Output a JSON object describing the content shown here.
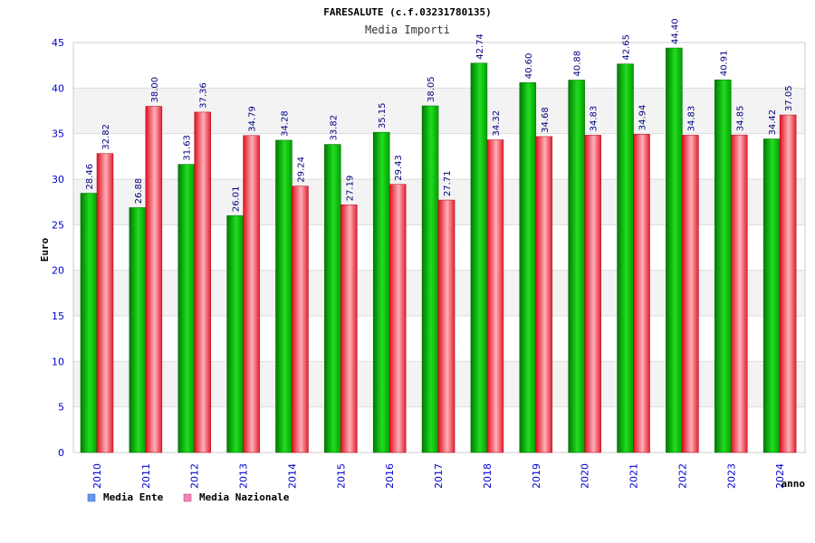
{
  "chart_data": {
    "type": "bar",
    "title": "FARESALUTE (c.f.03231780135)",
    "subtitle": "Media Importi",
    "xlabel": "anno",
    "ylabel": "Euro",
    "ylim": [
      0,
      45
    ],
    "yticks": [
      "0",
      "5",
      "10",
      "15",
      "20",
      "25",
      "30",
      "35",
      "40",
      "45"
    ],
    "categories": [
      "2010",
      "2011",
      "2012",
      "2013",
      "2014",
      "2015",
      "2016",
      "2017",
      "2018",
      "2019",
      "2020",
      "2021",
      "2022",
      "2023",
      "2024"
    ],
    "series": [
      {
        "name": "Media Ente",
        "values": [
          28.46,
          26.88,
          31.63,
          26.01,
          34.28,
          33.82,
          35.15,
          38.05,
          42.74,
          40.6,
          40.88,
          42.65,
          44.4,
          40.91,
          34.42
        ],
        "labels": [
          "28.46",
          "26.88",
          "31.63",
          "26.01",
          "34.28",
          "33.82",
          "35.15",
          "38.05",
          "42.74",
          "40.60",
          "40.88",
          "42.65",
          "44.40",
          "40.91",
          "34.42"
        ]
      },
      {
        "name": "Media Nazionale",
        "values": [
          32.82,
          38.0,
          37.36,
          34.79,
          29.24,
          27.19,
          29.43,
          27.71,
          34.32,
          34.68,
          34.83,
          34.94,
          34.83,
          34.85,
          37.05
        ],
        "labels": [
          "32.82",
          "38.00",
          "37.36",
          "34.79",
          "29.24",
          "27.19",
          "29.43",
          "27.71",
          "34.32",
          "34.68",
          "34.83",
          "34.94",
          "34.83",
          "34.85",
          "37.05"
        ]
      }
    ],
    "legend": [
      {
        "label": "Media Ente",
        "color": "#6699ee"
      },
      {
        "label": "Media Nazionale",
        "color": "#ee88bb"
      }
    ],
    "colors": {
      "ente_dark": "#007a00",
      "ente_light": "#22dd22",
      "naz_dark": "#dd1122",
      "naz_light": "#ffb0b8",
      "band": "#f3f3f3",
      "grid": "#dddddd"
    }
  }
}
